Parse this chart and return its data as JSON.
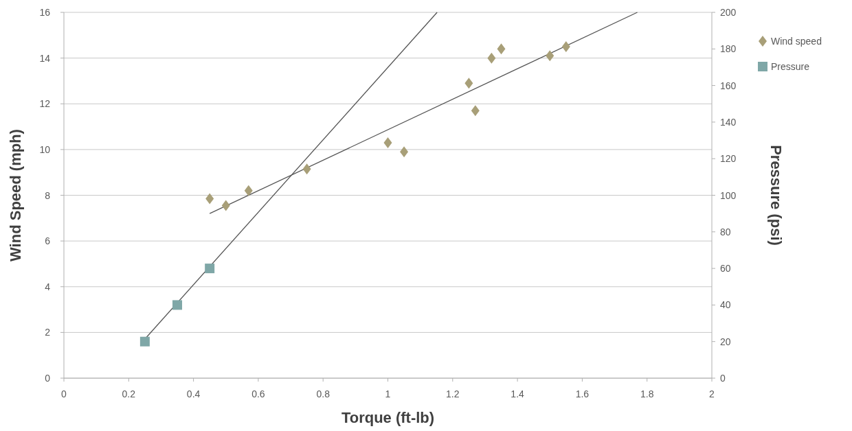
{
  "chart_data": {
    "type": "scatter",
    "xlabel": "Torque (ft-lb)",
    "ylabel": "Wind Speed (mph)",
    "y2label": "Pressure (psi)",
    "xlim": [
      0,
      2
    ],
    "xticks": [
      0,
      0.2,
      0.4,
      0.6,
      0.8,
      1,
      1.2,
      1.4,
      1.6,
      1.8,
      2
    ],
    "ylim": [
      0,
      16
    ],
    "yticks": [
      0,
      2,
      4,
      6,
      8,
      10,
      12,
      14,
      16
    ],
    "y2lim": [
      0,
      200
    ],
    "y2ticks": [
      0,
      20,
      40,
      60,
      80,
      100,
      120,
      140,
      160,
      180,
      200
    ],
    "grid": "y",
    "legend": "right",
    "series": [
      {
        "name": "Wind speed",
        "marker": "diamond",
        "color": "#a89f78",
        "x": [
          0.45,
          0.5,
          0.57,
          0.75,
          1.0,
          1.05,
          1.25,
          1.27,
          1.32,
          1.35,
          1.5,
          1.55
        ],
        "values": [
          7.85,
          7.55,
          8.2,
          9.15,
          10.3,
          9.9,
          12.9,
          11.7,
          14.0,
          14.4,
          14.1,
          14.5
        ]
      },
      {
        "name": "Pressure",
        "marker": "square",
        "color": "#7fa7a7",
        "axis": "y2",
        "x": [
          0.25,
          0.35,
          0.45
        ],
        "values": [
          20,
          40,
          60
        ]
      },
      {
        "type": "line",
        "marker": "none",
        "color": "#555555",
        "x": [
          0.45,
          1.77
        ],
        "values": [
          7.2,
          16
        ]
      },
      {
        "type": "line",
        "marker": "none",
        "color": "#555555",
        "axis": "y2",
        "x": [
          0.25,
          1.152
        ],
        "values": [
          21.4,
          200
        ]
      }
    ]
  }
}
